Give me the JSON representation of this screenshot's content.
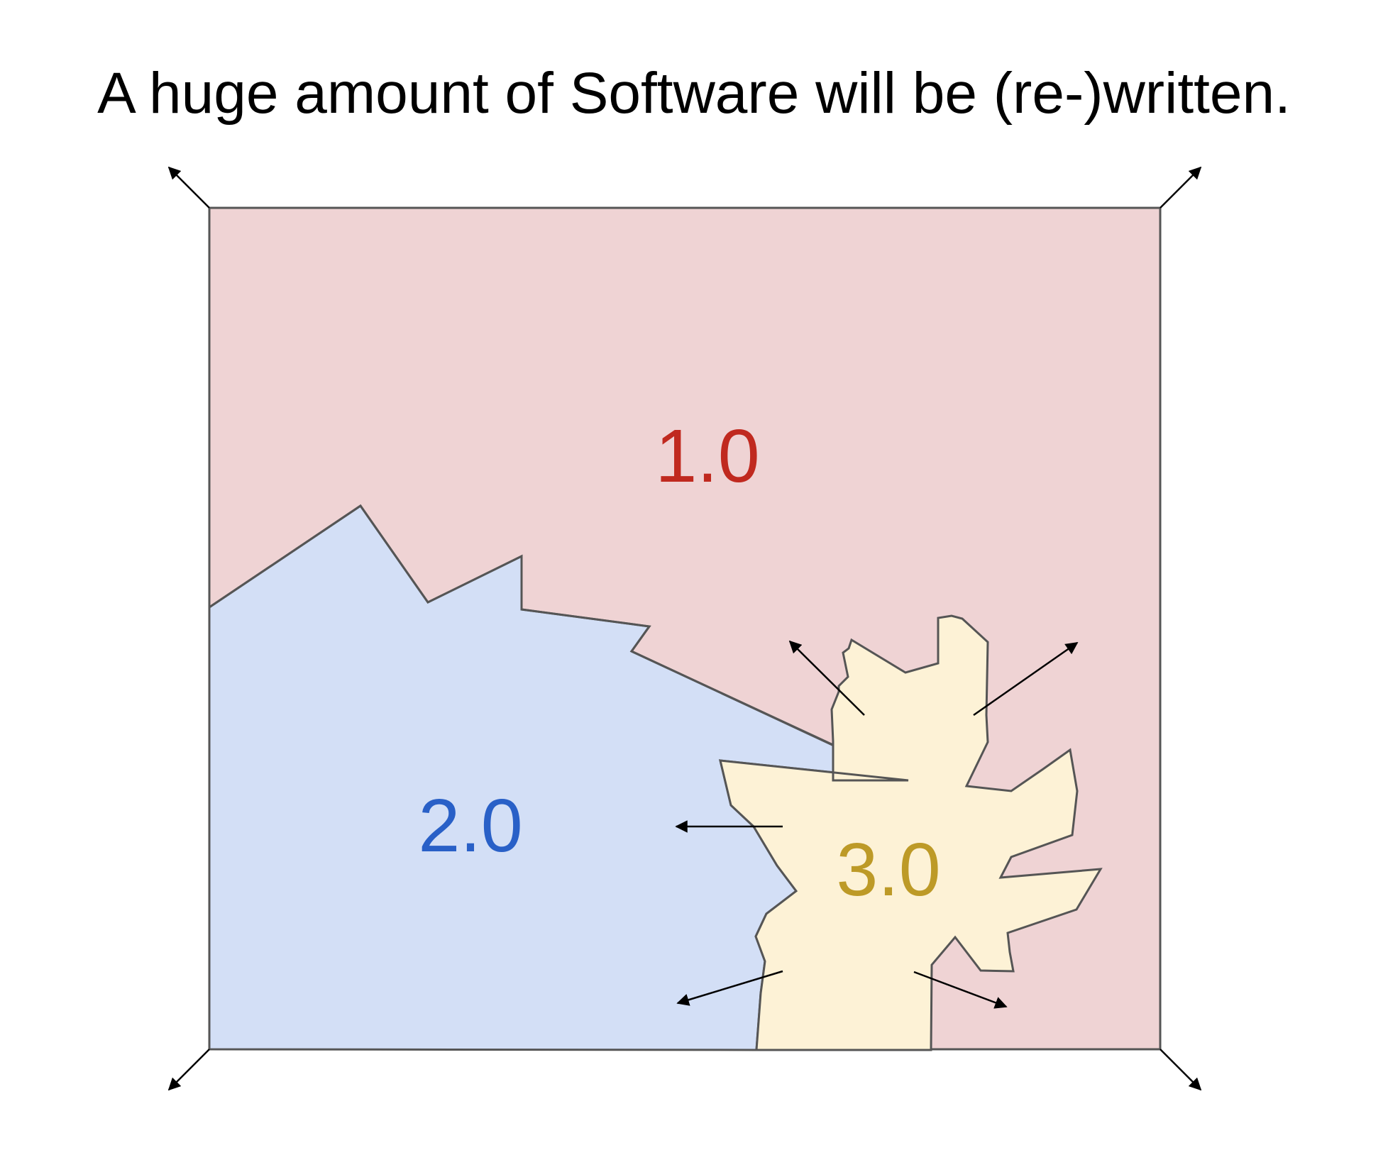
{
  "slide": {
    "title": "A huge amount of Software will be (re-)written."
  },
  "diagram": {
    "regions": [
      {
        "id": "v1",
        "label": "1.0",
        "fill": "#efd3d4",
        "text_color": "#c0291f"
      },
      {
        "id": "v2",
        "label": "2.0",
        "fill": "#d3dff6",
        "text_color": "#2960c7"
      },
      {
        "id": "v3",
        "label": "3.0",
        "fill": "#fdf2d6",
        "text_color": "#bd9a27"
      }
    ],
    "border_color": "#555555",
    "arrow_color": "#000000"
  }
}
